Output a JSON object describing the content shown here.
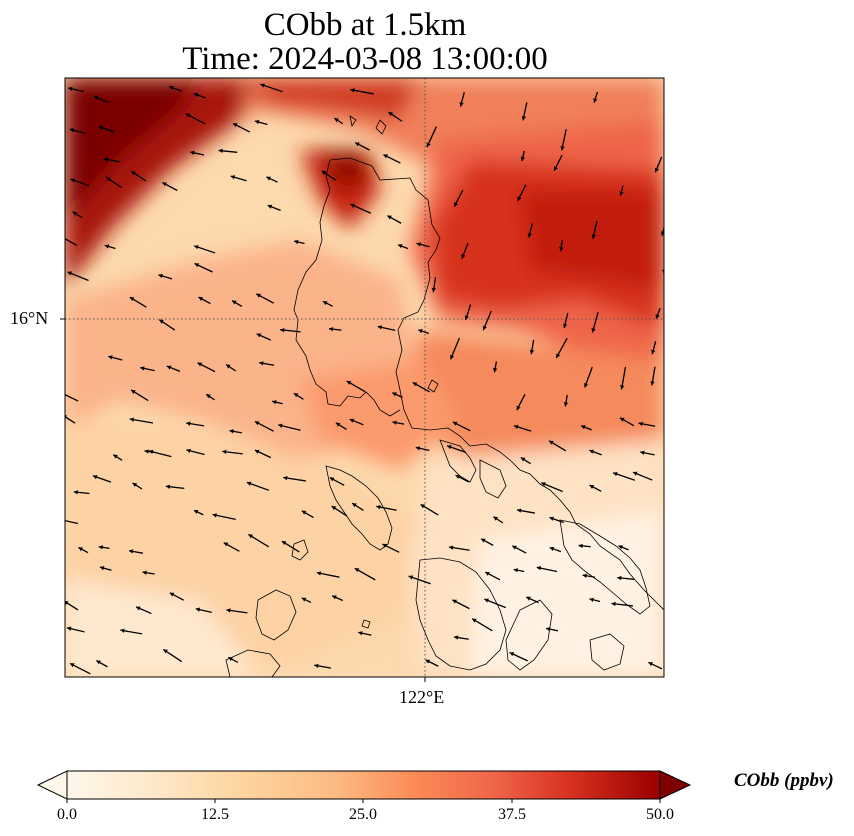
{
  "title": {
    "line1": "CObb at 1.5km",
    "line2": "Time: 2024-03-08 13:00:00"
  },
  "axes": {
    "latitude_tick": "16°N",
    "longitude_tick": "122°E"
  },
  "colorbar": {
    "label": "CObb (ppbv)",
    "ticks": [
      "0.0",
      "12.5",
      "25.0",
      "37.5",
      "50.0"
    ],
    "min": 0,
    "max": 50,
    "extend": "both",
    "colors": [
      "#fff5eb",
      "#fee6ce",
      "#fdd0a2",
      "#fdae6b",
      "#fd8d3c",
      "#f16913",
      "#d94801",
      "#a63603",
      "#7f2704"
    ],
    "cmap": "OrRd"
  },
  "map": {
    "gridlines": "dotted",
    "coastlines": true,
    "wind_vectors": true
  }
}
